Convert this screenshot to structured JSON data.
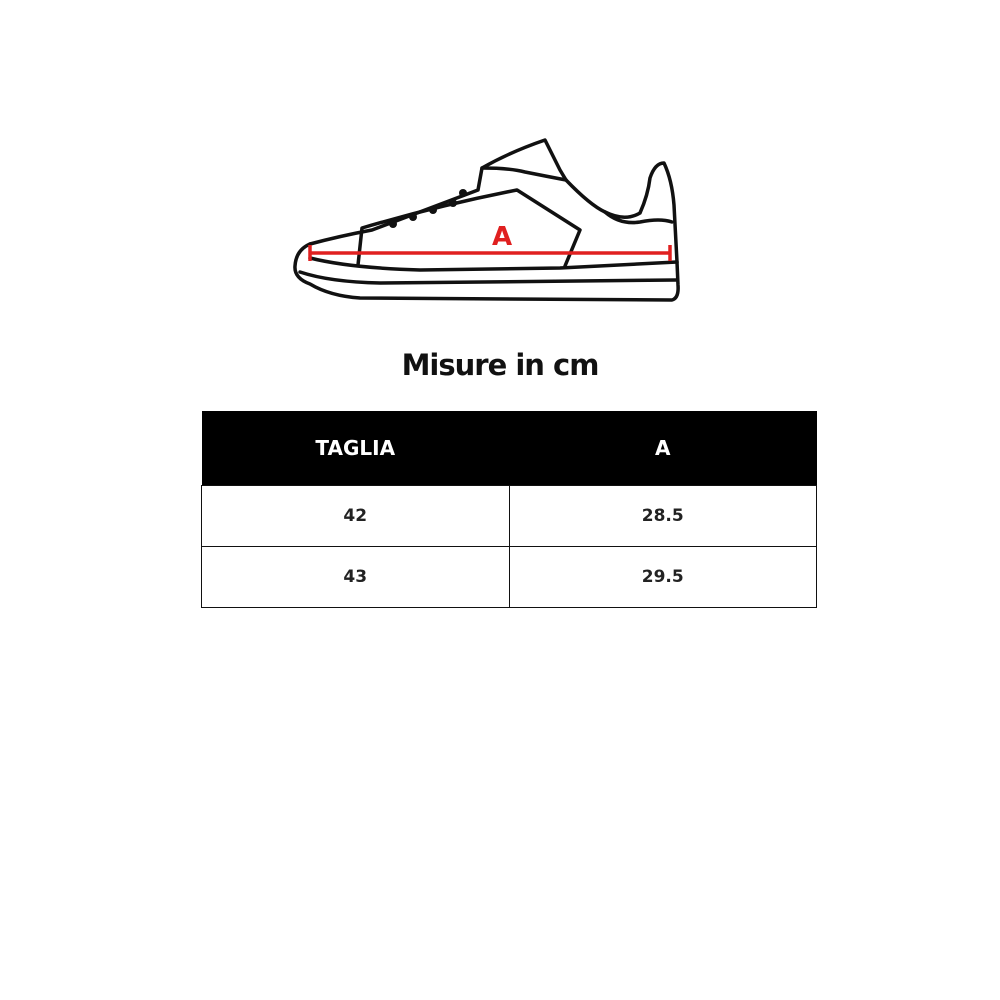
{
  "diagram": {
    "measure_label": "A",
    "measure_color": "#e02020"
  },
  "title": "Misure in cm",
  "table": {
    "headers": [
      "TAGLIA",
      "A"
    ],
    "rows": [
      [
        "42",
        "28.5"
      ],
      [
        "43",
        "29.5"
      ]
    ]
  }
}
